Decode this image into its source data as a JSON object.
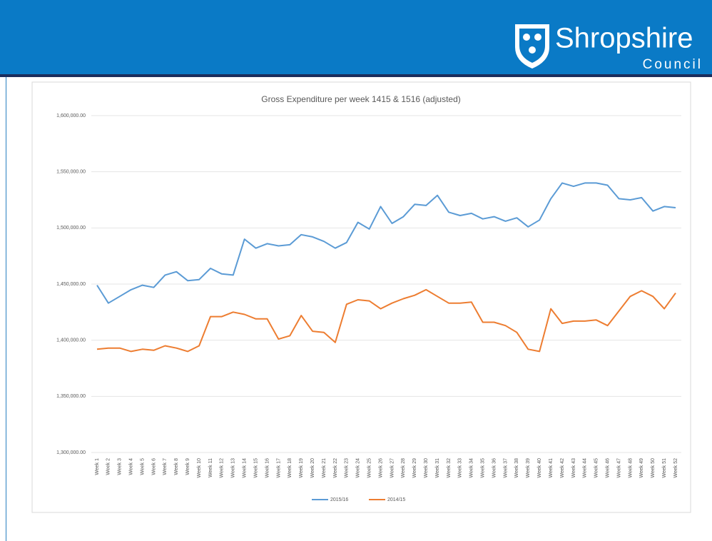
{
  "header": {
    "logo_title": "Shropshire",
    "logo_subtitle": "Council"
  },
  "chart_data": {
    "type": "line",
    "title": "Gross Expenditure per week 1415 & 1516 (adjusted)",
    "categories": [
      "Week 1",
      "Week 2",
      "Week 3",
      "Week 4",
      "Week 5",
      "Week 6",
      "Week 7",
      "Week 8",
      "Week 9",
      "Week 10",
      "Week 11",
      "Week 12",
      "Week 13",
      "Week 14",
      "Week 15",
      "Week 16",
      "Week 17",
      "Week 18",
      "Week 19",
      "Week 20",
      "Week 21",
      "Week 22",
      "Week 23",
      "Week 24",
      "Week 25",
      "Week 26",
      "Week 27",
      "Week 28",
      "Week 29",
      "Week 30",
      "Week 31",
      "Week 32",
      "Week 33",
      "Week 34",
      "Week 35",
      "Week 36",
      "Week 37",
      "Week 38",
      "Week 39",
      "Week 40",
      "Week 41",
      "Week 42",
      "Week 43",
      "Week 44",
      "Week 45",
      "Week 46",
      "Week 47",
      "Week 48",
      "Week 49",
      "Week 50",
      "Week 51",
      "Week 52"
    ],
    "series": [
      {
        "name": "2015/16",
        "color": "#5b9bd5",
        "values": [
          1449000,
          1433000,
          1439000,
          1445000,
          1449000,
          1447000,
          1458000,
          1461000,
          1453000,
          1454000,
          1464000,
          1459000,
          1458000,
          1490000,
          1482000,
          1486000,
          1484000,
          1485000,
          1494000,
          1492000,
          1488000,
          1482000,
          1487000,
          1505000,
          1499000,
          1519000,
          1504000,
          1510000,
          1521000,
          1520000,
          1529000,
          1514000,
          1511000,
          1513000,
          1508000,
          1510000,
          1506000,
          1509000,
          1501000,
          1507000,
          1526000,
          1540000,
          1537000,
          1540000,
          1540000,
          1538000,
          1526000,
          1525000,
          1527000,
          1515000,
          1519000,
          1518000
        ]
      },
      {
        "name": "2014/15",
        "color": "#ed7d31",
        "values": [
          1392000,
          1393000,
          1393000,
          1390000,
          1392000,
          1391000,
          1395000,
          1393000,
          1390000,
          1395000,
          1421000,
          1421000,
          1425000,
          1423000,
          1419000,
          1419000,
          1401000,
          1404000,
          1422000,
          1408000,
          1407000,
          1398000,
          1432000,
          1436000,
          1435000,
          1428000,
          1433000,
          1437000,
          1440000,
          1445000,
          1439000,
          1433000,
          1433000,
          1434000,
          1416000,
          1416000,
          1413000,
          1407000,
          1392000,
          1390000,
          1428000,
          1415000,
          1417000,
          1417000,
          1418000,
          1413000,
          1426000,
          1439000,
          1444000,
          1439000,
          1428000,
          1442000
        ]
      }
    ],
    "ylim": [
      1300000,
      1600000
    ],
    "yticks": [
      {
        "value": 1300000,
        "label": "1,300,000.00"
      },
      {
        "value": 1350000,
        "label": "1,350,000.00"
      },
      {
        "value": 1400000,
        "label": "1,400,000.00"
      },
      {
        "value": 1450000,
        "label": "1,450,000.00"
      },
      {
        "value": 1500000,
        "label": "1,500,000.00"
      },
      {
        "value": 1550000,
        "label": "1,550,000.00"
      },
      {
        "value": 1600000,
        "label": "1,600,000.00"
      }
    ],
    "grid": true,
    "legend": "bottom"
  }
}
